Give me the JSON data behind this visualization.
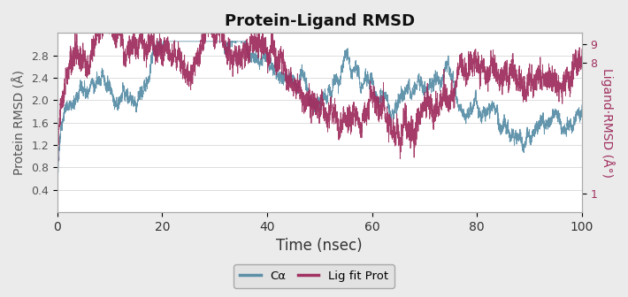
{
  "title": "Protein-Ligand RMSD",
  "xlabel": "Time (nsec)",
  "ylabel_left": "Protein RMSD (Å)",
  "ylabel_right": "Ligand·RMSD (Å°)",
  "xlim": [
    0,
    100
  ],
  "ylim_left": [
    0.0,
    3.2
  ],
  "ylim_right": [
    0,
    9.6
  ],
  "yticks_left": [
    0.4,
    0.8,
    1.2,
    1.6,
    2.0,
    2.4,
    2.8
  ],
  "yticks_right": [
    1,
    8,
    9
  ],
  "xticks": [
    0,
    20,
    40,
    60,
    80,
    100
  ],
  "color_blue": "#5b8fa8",
  "color_red": "#a03060",
  "legend_labels": [
    "Cα",
    "Lig fit Prot"
  ],
  "bg_color": "#ebebeb",
  "plot_bg": "#ffffff",
  "title_fontsize": 13,
  "label_fontsize": 10,
  "tick_fontsize": 9,
  "seed": 42,
  "n_points": 5000
}
